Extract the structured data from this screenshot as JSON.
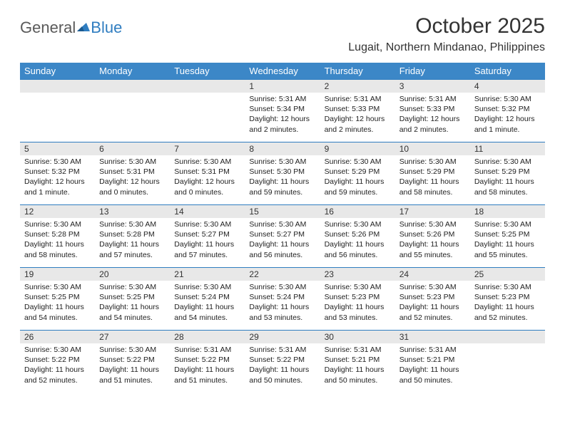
{
  "brand": {
    "part1": "General",
    "part2": "Blue"
  },
  "title": "October 2025",
  "location": "Lugait, Northern Mindanao, Philippines",
  "colors": {
    "header_bg": "#3c87c7",
    "header_text": "#ffffff",
    "border": "#2f7dc0",
    "daynum_bg": "#e8e8e8",
    "logo_blue": "#2f7dc0",
    "text": "#333333"
  },
  "weekdays": [
    "Sunday",
    "Monday",
    "Tuesday",
    "Wednesday",
    "Thursday",
    "Friday",
    "Saturday"
  ],
  "labels": {
    "sunrise": "Sunrise:",
    "sunset": "Sunset:",
    "daylight": "Daylight:"
  },
  "weeks": [
    [
      null,
      null,
      null,
      {
        "n": "1",
        "sr": "5:31 AM",
        "ss": "5:34 PM",
        "dl": "12 hours and 2 minutes."
      },
      {
        "n": "2",
        "sr": "5:31 AM",
        "ss": "5:33 PM",
        "dl": "12 hours and 2 minutes."
      },
      {
        "n": "3",
        "sr": "5:31 AM",
        "ss": "5:33 PM",
        "dl": "12 hours and 2 minutes."
      },
      {
        "n": "4",
        "sr": "5:30 AM",
        "ss": "5:32 PM",
        "dl": "12 hours and 1 minute."
      }
    ],
    [
      {
        "n": "5",
        "sr": "5:30 AM",
        "ss": "5:32 PM",
        "dl": "12 hours and 1 minute."
      },
      {
        "n": "6",
        "sr": "5:30 AM",
        "ss": "5:31 PM",
        "dl": "12 hours and 0 minutes."
      },
      {
        "n": "7",
        "sr": "5:30 AM",
        "ss": "5:31 PM",
        "dl": "12 hours and 0 minutes."
      },
      {
        "n": "8",
        "sr": "5:30 AM",
        "ss": "5:30 PM",
        "dl": "11 hours and 59 minutes."
      },
      {
        "n": "9",
        "sr": "5:30 AM",
        "ss": "5:29 PM",
        "dl": "11 hours and 59 minutes."
      },
      {
        "n": "10",
        "sr": "5:30 AM",
        "ss": "5:29 PM",
        "dl": "11 hours and 58 minutes."
      },
      {
        "n": "11",
        "sr": "5:30 AM",
        "ss": "5:29 PM",
        "dl": "11 hours and 58 minutes."
      }
    ],
    [
      {
        "n": "12",
        "sr": "5:30 AM",
        "ss": "5:28 PM",
        "dl": "11 hours and 58 minutes."
      },
      {
        "n": "13",
        "sr": "5:30 AM",
        "ss": "5:28 PM",
        "dl": "11 hours and 57 minutes."
      },
      {
        "n": "14",
        "sr": "5:30 AM",
        "ss": "5:27 PM",
        "dl": "11 hours and 57 minutes."
      },
      {
        "n": "15",
        "sr": "5:30 AM",
        "ss": "5:27 PM",
        "dl": "11 hours and 56 minutes."
      },
      {
        "n": "16",
        "sr": "5:30 AM",
        "ss": "5:26 PM",
        "dl": "11 hours and 56 minutes."
      },
      {
        "n": "17",
        "sr": "5:30 AM",
        "ss": "5:26 PM",
        "dl": "11 hours and 55 minutes."
      },
      {
        "n": "18",
        "sr": "5:30 AM",
        "ss": "5:25 PM",
        "dl": "11 hours and 55 minutes."
      }
    ],
    [
      {
        "n": "19",
        "sr": "5:30 AM",
        "ss": "5:25 PM",
        "dl": "11 hours and 54 minutes."
      },
      {
        "n": "20",
        "sr": "5:30 AM",
        "ss": "5:25 PM",
        "dl": "11 hours and 54 minutes."
      },
      {
        "n": "21",
        "sr": "5:30 AM",
        "ss": "5:24 PM",
        "dl": "11 hours and 54 minutes."
      },
      {
        "n": "22",
        "sr": "5:30 AM",
        "ss": "5:24 PM",
        "dl": "11 hours and 53 minutes."
      },
      {
        "n": "23",
        "sr": "5:30 AM",
        "ss": "5:23 PM",
        "dl": "11 hours and 53 minutes."
      },
      {
        "n": "24",
        "sr": "5:30 AM",
        "ss": "5:23 PM",
        "dl": "11 hours and 52 minutes."
      },
      {
        "n": "25",
        "sr": "5:30 AM",
        "ss": "5:23 PM",
        "dl": "11 hours and 52 minutes."
      }
    ],
    [
      {
        "n": "26",
        "sr": "5:30 AM",
        "ss": "5:22 PM",
        "dl": "11 hours and 52 minutes."
      },
      {
        "n": "27",
        "sr": "5:30 AM",
        "ss": "5:22 PM",
        "dl": "11 hours and 51 minutes."
      },
      {
        "n": "28",
        "sr": "5:31 AM",
        "ss": "5:22 PM",
        "dl": "11 hours and 51 minutes."
      },
      {
        "n": "29",
        "sr": "5:31 AM",
        "ss": "5:22 PM",
        "dl": "11 hours and 50 minutes."
      },
      {
        "n": "30",
        "sr": "5:31 AM",
        "ss": "5:21 PM",
        "dl": "11 hours and 50 minutes."
      },
      {
        "n": "31",
        "sr": "5:31 AM",
        "ss": "5:21 PM",
        "dl": "11 hours and 50 minutes."
      },
      null
    ]
  ]
}
